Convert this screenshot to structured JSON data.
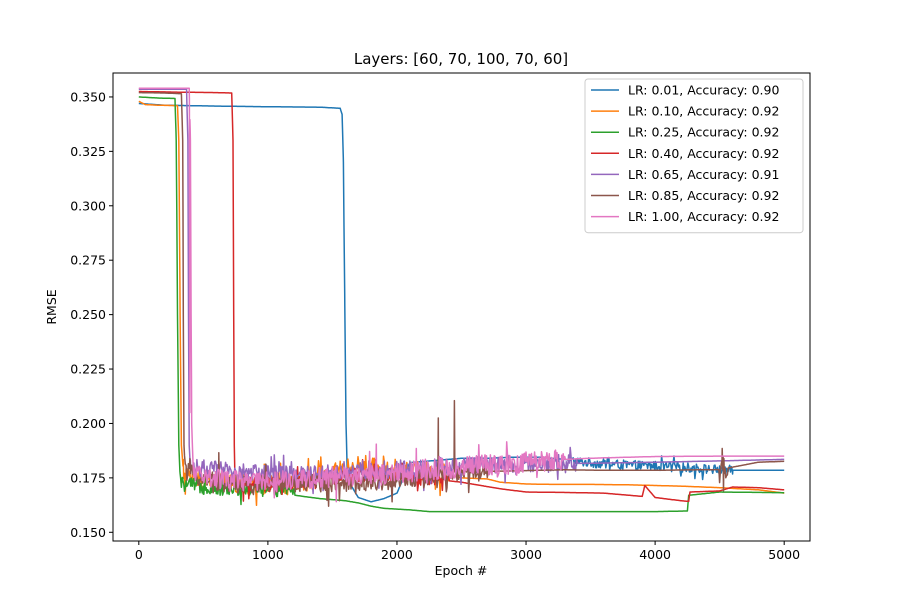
{
  "chart_data": {
    "type": "line",
    "title": "Layers: [60, 70, 100, 70, 60]",
    "xlabel": "Epoch #",
    "ylabel": "RMSE",
    "xlim": [
      -200,
      5200
    ],
    "ylim": [
      0.146,
      0.361
    ],
    "xticks": [
      0,
      1000,
      2000,
      3000,
      4000,
      5000
    ],
    "xtick_labels": [
      "0",
      "1000",
      "2000",
      "3000",
      "4000",
      "5000"
    ],
    "yticks": [
      0.15,
      0.175,
      0.2,
      0.225,
      0.25,
      0.275,
      0.3,
      0.325,
      0.35
    ],
    "ytick_labels": [
      "0.150",
      "0.175",
      "0.200",
      "0.225",
      "0.250",
      "0.275",
      "0.300",
      "0.325",
      "0.350"
    ],
    "grid": false,
    "legend_position": "top-right",
    "series": [
      {
        "name": "LR: 0.01, Accuracy: 0.90",
        "color": "#1f77b4",
        "points": [
          [
            0,
            0.347
          ],
          [
            200,
            0.3462
          ],
          [
            600,
            0.3458
          ],
          [
            1000,
            0.3455
          ],
          [
            1400,
            0.3453
          ],
          [
            1560,
            0.3448
          ],
          [
            1575,
            0.342
          ],
          [
            1585,
            0.32
          ],
          [
            1595,
            0.26
          ],
          [
            1605,
            0.2
          ],
          [
            1615,
            0.178
          ],
          [
            1640,
            0.172
          ],
          [
            1700,
            0.166
          ],
          [
            1800,
            0.164
          ],
          [
            1900,
            0.1655
          ],
          [
            2000,
            0.168
          ],
          [
            2050,
            0.175
          ],
          [
            2100,
            0.182
          ],
          [
            2300,
            0.183
          ],
          [
            2500,
            0.184
          ],
          [
            2700,
            0.184
          ],
          [
            2900,
            0.1845
          ],
          [
            3100,
            0.1845
          ],
          [
            3300,
            0.1835
          ],
          [
            3400,
            0.1825
          ],
          [
            3600,
            0.1815
          ],
          [
            3800,
            0.1808
          ],
          [
            4000,
            0.1805
          ],
          [
            4200,
            0.18
          ],
          [
            4400,
            0.179
          ],
          [
            4600,
            0.1785
          ],
          [
            4800,
            0.1785
          ],
          [
            5000,
            0.1785
          ]
        ],
        "noise": [
          [
            3350,
            4600,
            0.0022
          ]
        ]
      },
      {
        "name": "LR: 0.10, Accuracy: 0.92",
        "color": "#ff7f0e",
        "points": [
          [
            0,
            0.348
          ],
          [
            50,
            0.3465
          ],
          [
            150,
            0.3462
          ],
          [
            300,
            0.346
          ],
          [
            310,
            0.33
          ],
          [
            320,
            0.25
          ],
          [
            330,
            0.19
          ],
          [
            345,
            0.178
          ],
          [
            400,
            0.175
          ],
          [
            600,
            0.173
          ],
          [
            800,
            0.172
          ],
          [
            1000,
            0.1715
          ],
          [
            1200,
            0.172
          ],
          [
            1400,
            0.175
          ],
          [
            1600,
            0.179
          ],
          [
            1750,
            0.181
          ],
          [
            1900,
            0.179
          ],
          [
            2100,
            0.178
          ],
          [
            2300,
            0.178
          ],
          [
            2500,
            0.175
          ],
          [
            2700,
            0.1745
          ],
          [
            2800,
            0.173
          ],
          [
            3000,
            0.1722
          ],
          [
            3200,
            0.172
          ],
          [
            3500,
            0.172
          ],
          [
            3800,
            0.1718
          ],
          [
            4000,
            0.1715
          ],
          [
            4200,
            0.1712
          ],
          [
            4500,
            0.1705
          ],
          [
            4800,
            0.1695
          ],
          [
            5000,
            0.168
          ]
        ],
        "noise": [
          [
            345,
            2400,
            0.0045
          ]
        ]
      },
      {
        "name": "LR: 0.25, Accuracy: 0.92",
        "color": "#2ca02c",
        "points": [
          [
            0,
            0.35
          ],
          [
            150,
            0.3495
          ],
          [
            280,
            0.3493
          ],
          [
            290,
            0.33
          ],
          [
            300,
            0.25
          ],
          [
            310,
            0.19
          ],
          [
            320,
            0.175
          ],
          [
            340,
            0.172
          ],
          [
            500,
            0.171
          ],
          [
            700,
            0.17
          ],
          [
            900,
            0.1695
          ],
          [
            1100,
            0.17
          ],
          [
            1200,
            0.171
          ],
          [
            1210,
            0.167
          ],
          [
            1400,
            0.1655
          ],
          [
            1600,
            0.1645
          ],
          [
            1700,
            0.1635
          ],
          [
            1800,
            0.162
          ],
          [
            1900,
            0.161
          ],
          [
            2100,
            0.1603
          ],
          [
            2250,
            0.1595
          ],
          [
            2400,
            0.1595
          ],
          [
            3000,
            0.1595
          ],
          [
            4000,
            0.1595
          ],
          [
            4250,
            0.1598
          ],
          [
            4260,
            0.167
          ],
          [
            4500,
            0.1685
          ],
          [
            5000,
            0.1682
          ]
        ],
        "noise": [
          [
            320,
            1200,
            0.0035
          ]
        ]
      },
      {
        "name": "LR: 0.40, Accuracy: 0.92",
        "color": "#d62728",
        "points": [
          [
            0,
            0.3525
          ],
          [
            300,
            0.3522
          ],
          [
            600,
            0.352
          ],
          [
            720,
            0.3518
          ],
          [
            730,
            0.33
          ],
          [
            735,
            0.25
          ],
          [
            740,
            0.19
          ],
          [
            745,
            0.175
          ],
          [
            800,
            0.172
          ],
          [
            1000,
            0.172
          ],
          [
            1300,
            0.174
          ],
          [
            1600,
            0.176
          ],
          [
            1800,
            0.176
          ],
          [
            2000,
            0.1762
          ],
          [
            2200,
            0.175
          ],
          [
            2500,
            0.173
          ],
          [
            2800,
            0.17
          ],
          [
            3000,
            0.1685
          ],
          [
            3300,
            0.1683
          ],
          [
            3600,
            0.168
          ],
          [
            3900,
            0.1665
          ],
          [
            3920,
            0.1715
          ],
          [
            4000,
            0.166
          ],
          [
            4200,
            0.1645
          ],
          [
            4260,
            0.1642
          ],
          [
            4270,
            0.1685
          ],
          [
            4500,
            0.169
          ],
          [
            4600,
            0.1708
          ],
          [
            4800,
            0.1705
          ],
          [
            5000,
            0.1695
          ]
        ],
        "noise": [
          [
            745,
            2400,
            0.0035
          ]
        ]
      },
      {
        "name": "LR: 0.65, Accuracy: 0.91",
        "color": "#9467bd",
        "points": [
          [
            0,
            0.3535
          ],
          [
            200,
            0.3535
          ],
          [
            370,
            0.3535
          ],
          [
            380,
            0.33
          ],
          [
            385,
            0.25
          ],
          [
            390,
            0.19
          ],
          [
            400,
            0.18
          ],
          [
            600,
            0.1785
          ],
          [
            800,
            0.1775
          ],
          [
            1000,
            0.177
          ],
          [
            1200,
            0.176
          ],
          [
            1400,
            0.177
          ],
          [
            1600,
            0.1785
          ],
          [
            1800,
            0.1788
          ],
          [
            2000,
            0.179
          ],
          [
            2200,
            0.1792
          ],
          [
            2400,
            0.18
          ],
          [
            2600,
            0.1805
          ],
          [
            2800,
            0.181
          ],
          [
            3000,
            0.1812
          ],
          [
            3200,
            0.1815
          ],
          [
            3600,
            0.1818
          ],
          [
            4000,
            0.1822
          ],
          [
            4500,
            0.1828
          ],
          [
            5000,
            0.1835
          ]
        ],
        "noise": [
          [
            400,
            3400,
            0.0042
          ]
        ]
      },
      {
        "name": "LR: 0.85, Accuracy: 0.92",
        "color": "#8c564b",
        "points": [
          [
            0,
            0.352
          ],
          [
            200,
            0.3518
          ],
          [
            330,
            0.3515
          ],
          [
            340,
            0.33
          ],
          [
            345,
            0.25
          ],
          [
            350,
            0.19
          ],
          [
            360,
            0.178
          ],
          [
            500,
            0.1745
          ],
          [
            700,
            0.172
          ],
          [
            900,
            0.1715
          ],
          [
            1100,
            0.1725
          ],
          [
            1300,
            0.173
          ],
          [
            1500,
            0.1725
          ],
          [
            1700,
            0.1722
          ],
          [
            1900,
            0.1735
          ],
          [
            2100,
            0.175
          ],
          [
            2300,
            0.176
          ],
          [
            2500,
            0.177
          ],
          [
            2700,
            0.178
          ],
          [
            2900,
            0.1782
          ],
          [
            3100,
            0.1785
          ],
          [
            3300,
            0.1787
          ],
          [
            3600,
            0.1785
          ],
          [
            4000,
            0.1785
          ],
          [
            4500,
            0.1788
          ],
          [
            4800,
            0.1822
          ],
          [
            5000,
            0.1826
          ]
        ],
        "noise": [
          [
            360,
            2700,
            0.0042
          ],
          [
            4500,
            4560,
            0.006
          ]
        ],
        "spikes": [
          [
            2445,
            0.2105
          ],
          [
            2320,
            0.2025
          ],
          [
            1470,
            0.162
          ],
          [
            4520,
            0.1885
          ],
          [
            4530,
            0.169
          ],
          [
            620,
            0.1865
          ]
        ]
      },
      {
        "name": "LR: 1.00, Accuracy: 0.92",
        "color": "#e377c2",
        "points": [
          [
            0,
            0.354
          ],
          [
            200,
            0.354
          ],
          [
            390,
            0.354
          ],
          [
            400,
            0.33
          ],
          [
            405,
            0.25
          ],
          [
            410,
            0.2
          ],
          [
            420,
            0.178
          ],
          [
            600,
            0.1745
          ],
          [
            800,
            0.173
          ],
          [
            1000,
            0.173
          ],
          [
            1200,
            0.174
          ],
          [
            1400,
            0.175
          ],
          [
            1600,
            0.176
          ],
          [
            1800,
            0.1762
          ],
          [
            2000,
            0.177
          ],
          [
            2200,
            0.1785
          ],
          [
            2400,
            0.1795
          ],
          [
            2600,
            0.1805
          ],
          [
            2800,
            0.1812
          ],
          [
            3000,
            0.1822
          ],
          [
            3200,
            0.183
          ],
          [
            3400,
            0.1838
          ],
          [
            3600,
            0.1842
          ],
          [
            4000,
            0.1848
          ],
          [
            4500,
            0.185
          ],
          [
            5000,
            0.185
          ]
        ],
        "noise": [
          [
            420,
            3300,
            0.0048
          ]
        ],
        "spikes": [
          [
            395,
            0.205
          ],
          [
            1840,
            0.1905
          ],
          [
            2150,
            0.1885
          ],
          [
            1530,
            0.164
          ]
        ]
      }
    ]
  }
}
